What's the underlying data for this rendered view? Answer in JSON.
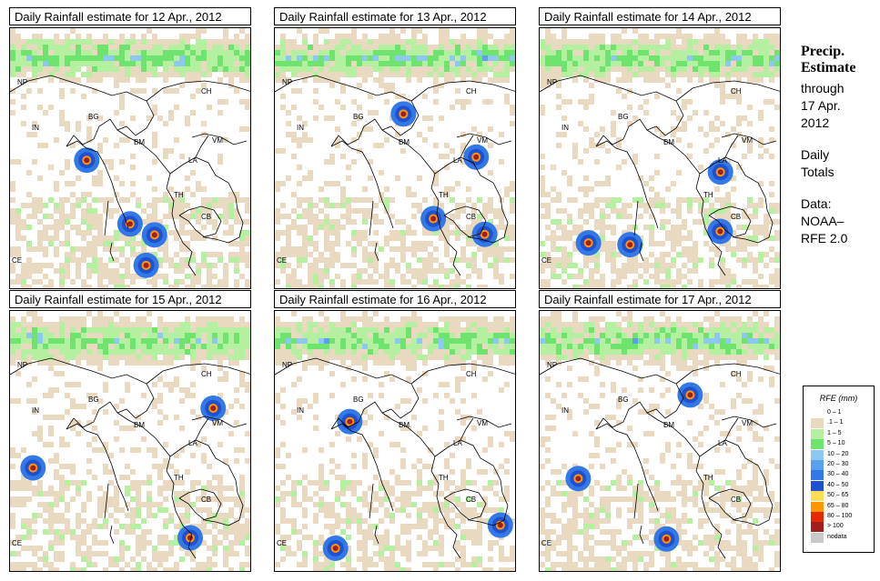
{
  "panels": [
    {
      "title": "Daily Rainfall estimate for  12 Apr., 2012",
      "labels": [
        "NP",
        "CH",
        "IN",
        "BG",
        "BM",
        "VM",
        "LA",
        "TH",
        "CB",
        "CE"
      ]
    },
    {
      "title": "Daily Rainfall estimate for  13 Apr., 2012",
      "labels": [
        "NP",
        "CH",
        "IN",
        "BG",
        "BM",
        "VM",
        "LA",
        "TH",
        "CB",
        "CE"
      ]
    },
    {
      "title": "Daily Rainfall estimate for  14 Apr., 2012",
      "labels": [
        "NP",
        "CH",
        "IN",
        "BG",
        "BM",
        "VM",
        "LA",
        "TH",
        "CB",
        "CE"
      ]
    },
    {
      "title": "Daily Rainfall estimate for  15 Apr., 2012",
      "labels": [
        "NP",
        "CH",
        "IN",
        "BG",
        "BM",
        "VM",
        "LA",
        "TH",
        "CB",
        "CE"
      ]
    },
    {
      "title": "Daily Rainfall estimate for  16 Apr., 2012",
      "labels": [
        "NP",
        "CH",
        "IN",
        "BG",
        "BM",
        "VM",
        "LA",
        "TH",
        "CB",
        "CE"
      ]
    },
    {
      "title": "Daily Rainfall estimate for  17 Apr., 2012",
      "labels": [
        "NP",
        "CH",
        "IN",
        "BG",
        "BM",
        "VM",
        "LA",
        "TH",
        "CB",
        "CE"
      ]
    }
  ],
  "side": {
    "title_line1": "Precip.",
    "title_line2": "Estimate",
    "through": "through",
    "date_line1": "17 Apr.",
    "date_line2": "2012",
    "totals_line1": "Daily",
    "totals_line2": "Totals",
    "data_line1": "Data:",
    "data_line2": "NOAA–",
    "data_line3": "RFE 2.0"
  },
  "legend": {
    "title": "RFE (mm)",
    "items": [
      {
        "label": "0 – 1",
        "color": "#ffffff"
      },
      {
        "label": ".1 – 1",
        "color": "#e8d9c0"
      },
      {
        "label": "1 – 5",
        "color": "#b4f0a0"
      },
      {
        "label": "5 – 10",
        "color": "#6ee46e"
      },
      {
        "label": "10 – 20",
        "color": "#8cc8f0"
      },
      {
        "label": "20 – 30",
        "color": "#5a9ff0"
      },
      {
        "label": "30 – 40",
        "color": "#3278e6"
      },
      {
        "label": "40 – 50",
        "color": "#1e50d2"
      },
      {
        "label": "50 – 65",
        "color": "#ffdc50"
      },
      {
        "label": "65 – 80",
        "color": "#ff9600"
      },
      {
        "label": "80 – 100",
        "color": "#e62800"
      },
      {
        "label": "> 100",
        "color": "#a01e1e"
      },
      {
        "label": "nodata",
        "color": "#c8c8c8"
      }
    ]
  }
}
